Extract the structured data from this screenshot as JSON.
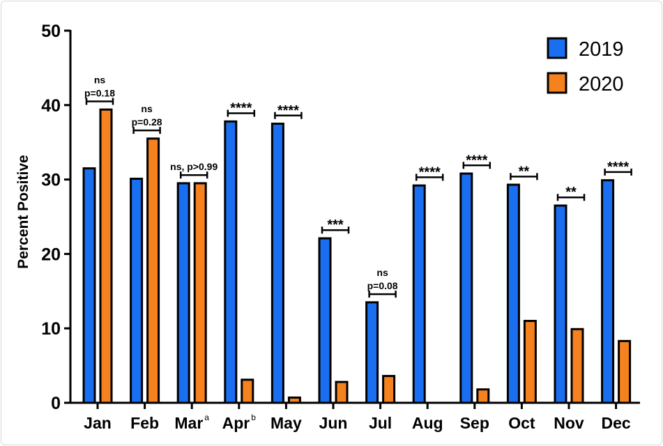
{
  "chart_data": {
    "type": "bar",
    "title": "",
    "xlabel": "",
    "ylabel": "Percent Positive",
    "ylim": [
      0,
      50
    ],
    "yticks": [
      "0",
      "10",
      "20",
      "30",
      "40",
      "50"
    ],
    "grid": false,
    "legend_position": "top-right",
    "categories": [
      "Jan",
      "Feb",
      "Mar",
      "Apr",
      "May",
      "Jun",
      "Jul",
      "Aug",
      "Sep",
      "Oct",
      "Nov",
      "Dec"
    ],
    "category_superscripts": [
      "",
      "",
      "a",
      "b",
      "",
      "",
      "",
      "",
      "",
      "",
      "",
      ""
    ],
    "series": [
      {
        "name": "2019",
        "color": "#1a6ff0",
        "values": [
          31.5,
          30.1,
          29.5,
          37.8,
          37.5,
          22.1,
          13.5,
          29.2,
          30.8,
          29.3,
          26.5,
          29.9
        ]
      },
      {
        "name": "2020",
        "color": "#f5821f",
        "values": [
          39.4,
          35.5,
          29.5,
          3.1,
          0.7,
          2.8,
          3.6,
          0,
          1.8,
          11.0,
          9.9,
          8.3
        ]
      }
    ],
    "annotations": [
      [
        "ns",
        "p=0.18"
      ],
      [
        "ns",
        "p=0.28"
      ],
      [
        "ns, p>0.99"
      ],
      [
        "****"
      ],
      [
        "****"
      ],
      [
        "***"
      ],
      [
        "ns",
        "p=0.08"
      ],
      [
        "****"
      ],
      [
        "****"
      ],
      [
        "**"
      ],
      [
        "**"
      ],
      [
        "****"
      ]
    ]
  }
}
